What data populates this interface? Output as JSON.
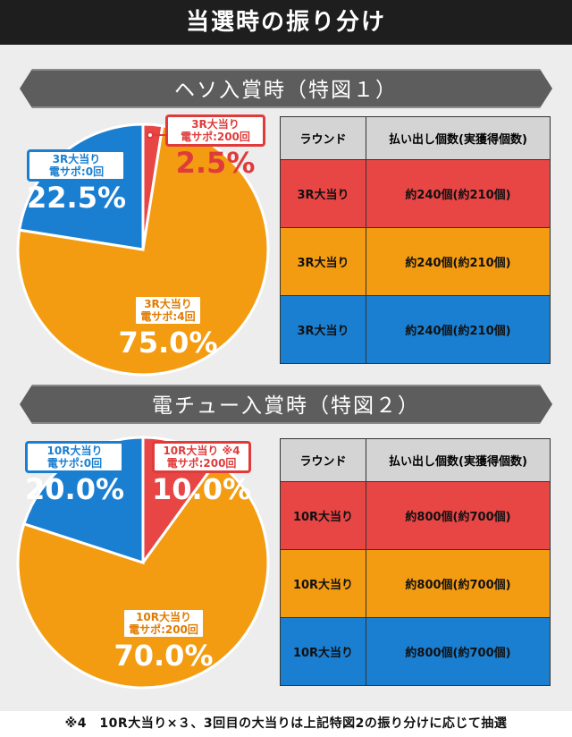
{
  "title": "当選時の振り分け",
  "sections": [
    {
      "heading": "ヘソ入賞時（特図１）",
      "table": {
        "headers": [
          "ラウンド",
          "払い出し個数(実獲得個数)"
        ],
        "rows": [
          [
            "3R大当り",
            "約240個(約210個)"
          ],
          [
            "3R大当り",
            "約240個(約210個)"
          ],
          [
            "3R大当り",
            "約240個(約210個)"
          ]
        ]
      }
    },
    {
      "heading": "電チュー入賞時（特図２）",
      "table": {
        "headers": [
          "ラウンド",
          "払い出し個数(実獲得個数)"
        ],
        "rows": [
          [
            "10R大当り",
            "約800個(約700個)"
          ],
          [
            "10R大当り",
            "約800個(約700個)"
          ],
          [
            "10R大当り",
            "約800個(約700個)"
          ]
        ]
      }
    }
  ],
  "chart_data": [
    {
      "type": "pie",
      "slices": [
        {
          "label_line1": "3R大当り",
          "label_line2": "電サポ:200回",
          "value": 2.5,
          "text": "2.5%",
          "color": "#e84545"
        },
        {
          "label_line1": "3R大当り",
          "label_line2": "電サポ:4回",
          "value": 75.0,
          "text": "75.0%",
          "color": "#f39c12"
        },
        {
          "label_line1": "3R大当り",
          "label_line2": "電サポ:0回",
          "value": 22.5,
          "text": "22.5%",
          "color": "#1a7fd1"
        }
      ]
    },
    {
      "type": "pie",
      "slices": [
        {
          "label_line1": "10R大当り ※4",
          "label_line2": "電サポ:200回",
          "value": 10.0,
          "text": "10.0%",
          "color": "#e84545"
        },
        {
          "label_line1": "10R大当り",
          "label_line2": "電サポ:200回",
          "value": 70.0,
          "text": "70.0%",
          "color": "#f39c12"
        },
        {
          "label_line1": "10R大当り",
          "label_line2": "電サポ:0回",
          "value": 20.0,
          "text": "20.0%",
          "color": "#1a7fd1"
        }
      ]
    }
  ],
  "footnote": "※4　10R大当り×３、3回目の大当りは上記特図2の振り分けに応じて抽選"
}
